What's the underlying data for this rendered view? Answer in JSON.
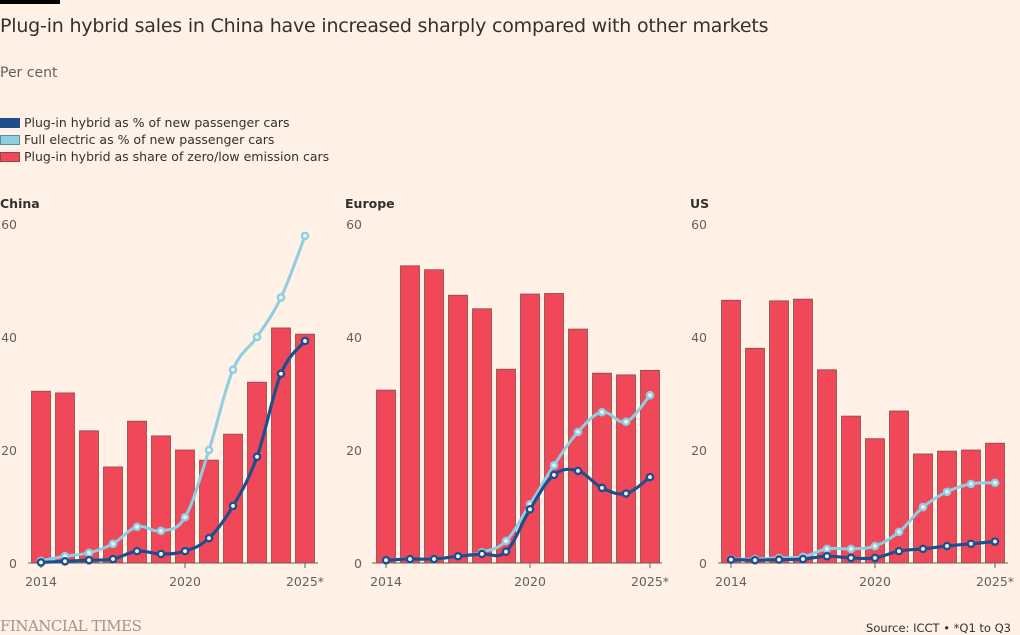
{
  "header": {
    "title": "Plug-in hybrid sales in China have increased sharply compared with other markets",
    "subtitle": "Per cent"
  },
  "legend": [
    {
      "label": "Plug-in hybrid as % of new passenger cars",
      "color": "#1F4E8C"
    },
    {
      "label": "Full electric as % of new passenger cars",
      "color": "#8FCDE0"
    },
    {
      "label": "Plug-in hybrid as share of zero/low emission cars",
      "color": "#F04858"
    }
  ],
  "footer": {
    "publisher": "FINANCIAL TIMES",
    "source": "Source: ICCT • *Q1 to Q3"
  },
  "colors": {
    "background": "#FFF1E5",
    "bar": "#F04858",
    "bar_edge": "#8A4A4A",
    "phev_line": "#1F4E8C",
    "bev_line": "#8FCDE0",
    "axis": "#66605C"
  },
  "chart_data": [
    {
      "type": "bar",
      "title": "China",
      "categories": [
        "2014",
        "2015",
        "2016",
        "2017",
        "2018",
        "2019",
        "2020",
        "2021",
        "2022",
        "2023",
        "2024",
        "2025*"
      ],
      "x_tick_labels": [
        "2014",
        "2020",
        "2025*"
      ],
      "y_ticks": [
        0,
        20,
        40,
        60
      ],
      "ylim": [
        0,
        60
      ],
      "xlabel": "",
      "ylabel": "Per cent",
      "series": [
        {
          "name": "Plug-in hybrid as share of zero/low emission cars",
          "type": "bar",
          "values": [
            30.4,
            30.1,
            23.4,
            17.0,
            25.1,
            22.5,
            20.0,
            18.2,
            22.8,
            32.0,
            41.6,
            40.5
          ]
        },
        {
          "name": "Full electric as % of new passenger cars",
          "type": "line",
          "values": [
            0.4,
            1.2,
            1.8,
            3.4,
            6.4,
            5.7,
            8.1,
            20.0,
            34.2,
            40.0,
            47.0,
            57.9
          ]
        },
        {
          "name": "Plug-in hybrid as % of new passenger cars",
          "type": "line",
          "values": [
            0.1,
            0.3,
            0.5,
            0.7,
            2.1,
            1.6,
            2.1,
            4.4,
            10.1,
            18.8,
            33.5,
            39.3
          ]
        }
      ]
    },
    {
      "type": "bar",
      "title": "Europe",
      "categories": [
        "2014",
        "2015",
        "2016",
        "2017",
        "2018",
        "2019",
        "2020",
        "2021",
        "2022",
        "2023",
        "2024",
        "2025*"
      ],
      "x_tick_labels": [
        "2014",
        "2020",
        "2025*"
      ],
      "y_ticks": [
        0,
        20,
        40,
        60
      ],
      "ylim": [
        0,
        60
      ],
      "xlabel": "",
      "ylabel": "Per cent",
      "series": [
        {
          "name": "Plug-in hybrid as share of zero/low emission cars",
          "type": "bar",
          "values": [
            30.6,
            52.6,
            51.9,
            47.4,
            45.0,
            34.3,
            47.6,
            47.7,
            41.4,
            33.6,
            33.3,
            34.1
          ]
        },
        {
          "name": "Full electric as % of new passenger cars",
          "type": "line",
          "values": [
            0.5,
            0.7,
            0.7,
            1.2,
            1.9,
            3.9,
            10.4,
            17.3,
            23.2,
            26.7,
            25.0,
            29.7
          ]
        },
        {
          "name": "Plug-in hybrid as % of new passenger cars",
          "type": "line",
          "values": [
            0.5,
            0.7,
            0.7,
            1.2,
            1.6,
            2.0,
            9.5,
            15.6,
            16.3,
            13.3,
            12.3,
            15.2
          ]
        }
      ]
    },
    {
      "type": "bar",
      "title": "US",
      "categories": [
        "2014",
        "2015",
        "2016",
        "2017",
        "2018",
        "2019",
        "2020",
        "2021",
        "2022",
        "2023",
        "2024",
        "2025*"
      ],
      "x_tick_labels": [
        "2014",
        "2020",
        "2025*"
      ],
      "y_ticks": [
        0,
        20,
        40,
        60
      ],
      "ylim": [
        0,
        60
      ],
      "xlabel": "",
      "ylabel": "Per cent",
      "series": [
        {
          "name": "Plug-in hybrid as share of zero/low emission cars",
          "type": "bar",
          "values": [
            46.5,
            38.0,
            46.4,
            46.7,
            34.2,
            26.0,
            22.0,
            26.9,
            19.3,
            19.8,
            20.0,
            21.2
          ]
        },
        {
          "name": "Full electric as % of new passenger cars",
          "type": "line",
          "values": [
            0.7,
            0.7,
            0.9,
            1.1,
            2.5,
            2.5,
            3.0,
            5.5,
            9.9,
            12.6,
            14.0,
            14.2
          ]
        },
        {
          "name": "Plug-in hybrid as % of new passenger cars",
          "type": "line",
          "values": [
            0.6,
            0.5,
            0.6,
            0.7,
            1.2,
            0.9,
            0.9,
            2.1,
            2.5,
            3.0,
            3.4,
            3.8
          ]
        }
      ]
    }
  ]
}
